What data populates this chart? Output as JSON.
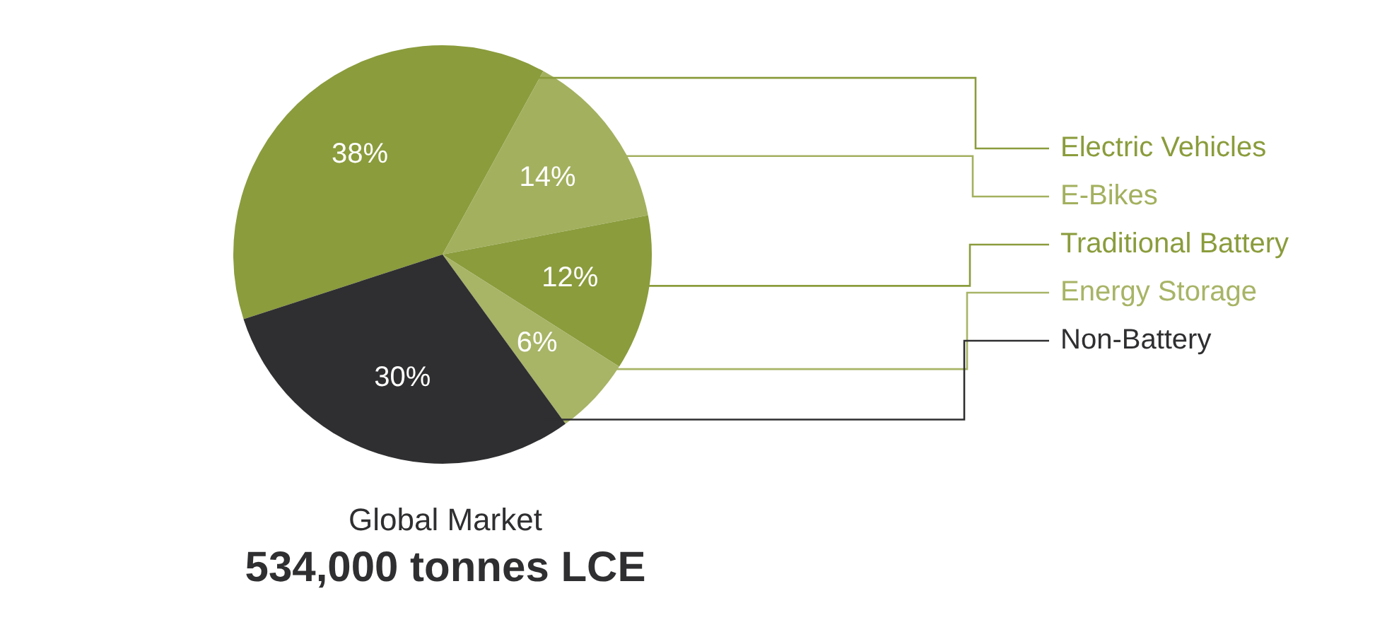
{
  "chart_data": {
    "type": "pie",
    "subtitle": "Global Market",
    "title": "534,000 tonnes LCE",
    "categories": [
      "Electric Vehicles",
      "E-Bikes",
      "Traditional Battery",
      "Energy Storage",
      "Non-Battery"
    ],
    "values": [
      38,
      14,
      12,
      6,
      30
    ],
    "colors": [
      "#8a9c3c",
      "#a3b05e",
      "#8a9c3c",
      "#a8b466",
      "#2f2f31"
    ],
    "value_labels": [
      "38%",
      "14%",
      "12%",
      "6%",
      "30%"
    ]
  }
}
